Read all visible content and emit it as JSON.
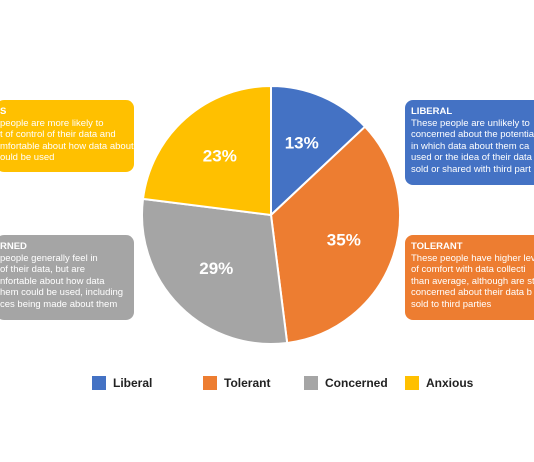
{
  "chart_data": {
    "type": "pie",
    "categories": [
      "Liberal",
      "Tolerant",
      "Concerned",
      "Anxious"
    ],
    "values": [
      13,
      35,
      29,
      23
    ],
    "value_labels": [
      "13%",
      "35%",
      "29%",
      "23%"
    ],
    "colors": [
      "#4472c4",
      "#ed7d31",
      "#a5a5a5",
      "#ffc000"
    ],
    "legend": "bottom",
    "annotations": [
      {
        "heading": "LIBERAL",
        "lines": [
          "These people are unlikely to",
          "concerned about the potentia",
          "in which data about them ca",
          "used or the idea of their data",
          "sold or shared with third part"
        ]
      },
      {
        "heading": "TOLERANT",
        "lines": [
          "These people have higher lev",
          "of comfort with data collecti",
          "than average, although are st",
          "concerned about their data b",
          "sold to third parties"
        ]
      },
      {
        "heading": "RNED",
        "lines": [
          "people generally feel in",
          "of their data, but are",
          "nfortable about how data",
          "hem could be used, including",
          "ces being made about them"
        ]
      },
      {
        "heading": "S",
        "lines": [
          "people are more likely to",
          "t of control of their data and",
          "mfortable about how data about",
          "ould be used"
        ]
      }
    ]
  }
}
